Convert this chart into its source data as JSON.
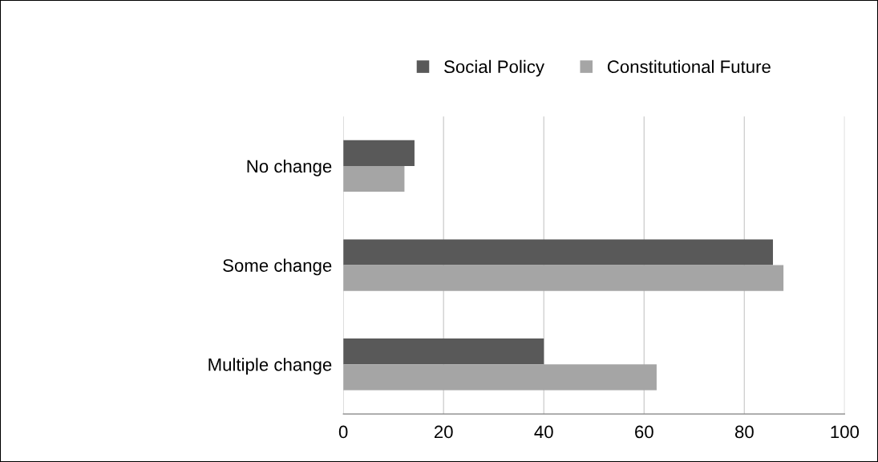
{
  "chart_data": {
    "type": "bar",
    "orientation": "horizontal",
    "categories": [
      "No change",
      "Some change",
      "Multiple change"
    ],
    "series": [
      {
        "name": "Social Policy",
        "color": "#595959",
        "values": [
          14.2,
          85.7,
          40
        ]
      },
      {
        "name": "Constitutional Future",
        "color": "#a5a5a5",
        "values": [
          12.2,
          87.8,
          62.5
        ]
      }
    ],
    "xlim": [
      0,
      100
    ],
    "xticks": [
      0,
      20,
      40,
      60,
      80,
      100
    ],
    "grid": "x",
    "legend": "top"
  }
}
